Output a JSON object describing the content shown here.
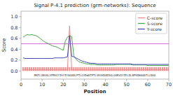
{
  "chart_data": {
    "type": "line",
    "title": "Signal P-4.1 prediction (grm-networks): Sequence",
    "x_label": "Position",
    "y_label": "Score",
    "x": [
      1,
      2,
      3,
      4,
      5,
      6,
      7,
      8,
      9,
      10,
      11,
      12,
      13,
      14,
      15,
      16,
      17,
      18,
      19,
      20,
      21,
      22,
      23,
      24,
      25,
      26,
      27,
      28,
      29,
      30,
      31,
      32,
      33,
      34,
      35,
      36,
      37,
      38,
      39,
      40,
      41,
      42,
      43,
      44,
      45,
      46,
      47,
      48,
      49,
      50,
      51,
      52,
      53,
      54,
      55,
      56,
      57,
      58,
      59,
      60,
      61,
      62,
      63,
      64,
      65,
      66,
      67,
      68,
      69,
      70
    ],
    "series": [
      {
        "name": "C-score",
        "color": "#f08888",
        "values": [
          0.02,
          0.02,
          0.02,
          0.02,
          0.02,
          0.02,
          0.02,
          0.02,
          0.02,
          0.02,
          0.02,
          0.02,
          0.02,
          0.02,
          0.02,
          0.02,
          0.02,
          0.02,
          0.02,
          0.02,
          0.02,
          0.02,
          0.83,
          0.02,
          0.02,
          0.02,
          0.02,
          0.02,
          0.02,
          0.02,
          0.02,
          0.02,
          0.02,
          0.02,
          0.02,
          0.02,
          0.02,
          0.02,
          0.02,
          0.02,
          0.02,
          0.02,
          0.02,
          0.02,
          0.02,
          0.02,
          0.02,
          0.02,
          0.02,
          0.02,
          0.02,
          0.02,
          0.02,
          0.02,
          0.02,
          0.02,
          0.02,
          0.02,
          0.02,
          0.02,
          0.02,
          0.02,
          0.02,
          0.02,
          0.02,
          0.02,
          0.02,
          0.02,
          0.02,
          0.02
        ]
      },
      {
        "name": "S-score",
        "color": "#44aa44",
        "values": [
          0.62,
          0.65,
          0.67,
          0.66,
          0.67,
          0.66,
          0.65,
          0.63,
          0.6,
          0.57,
          0.54,
          0.52,
          0.5,
          0.48,
          0.46,
          0.45,
          0.44,
          0.42,
          0.4,
          0.38,
          0.55,
          0.62,
          0.65,
          0.63,
          0.28,
          0.22,
          0.18,
          0.16,
          0.15,
          0.14,
          0.13,
          0.13,
          0.12,
          0.12,
          0.12,
          0.11,
          0.11,
          0.11,
          0.11,
          0.11,
          0.11,
          0.11,
          0.11,
          0.11,
          0.12,
          0.12,
          0.12,
          0.12,
          0.12,
          0.12,
          0.12,
          0.12,
          0.11,
          0.11,
          0.11,
          0.11,
          0.11,
          0.11,
          0.11,
          0.1,
          0.1,
          0.1,
          0.1,
          0.1,
          0.1,
          0.1,
          0.1,
          0.1,
          0.1,
          0.1
        ]
      },
      {
        "name": "Y-score",
        "color": "#4444bb",
        "values": [
          0.24,
          0.23,
          0.23,
          0.23,
          0.23,
          0.23,
          0.23,
          0.23,
          0.23,
          0.23,
          0.23,
          0.23,
          0.23,
          0.23,
          0.23,
          0.24,
          0.24,
          0.24,
          0.24,
          0.24,
          0.25,
          0.26,
          0.65,
          0.27,
          0.26,
          0.24,
          0.22,
          0.2,
          0.18,
          0.17,
          0.16,
          0.15,
          0.14,
          0.14,
          0.14,
          0.13,
          0.13,
          0.13,
          0.13,
          0.13,
          0.13,
          0.13,
          0.13,
          0.13,
          0.13,
          0.13,
          0.13,
          0.13,
          0.13,
          0.13,
          0.13,
          0.13,
          0.12,
          0.12,
          0.12,
          0.12,
          0.12,
          0.12,
          0.12,
          0.12,
          0.12,
          0.12,
          0.12,
          0.12,
          0.12,
          0.12,
          0.12,
          0.12,
          0.12,
          0.12
        ]
      },
      {
        "type": "bar",
        "color": "#f08080",
        "values": [
          0.07,
          0.07,
          0.07,
          0.07,
          0.07,
          0.07,
          0.07,
          0.07,
          0.07,
          0.07,
          0.07,
          0.07,
          0.07,
          0.07,
          0.07,
          0.07,
          0.07,
          0.07,
          0.07,
          0.07,
          0.07,
          0.07,
          0.07,
          0.07,
          0.07,
          0.07,
          0.07,
          0.07,
          0.07,
          0.07,
          0.07,
          0.07,
          0.07,
          0.07,
          0.07,
          0.07,
          0.07,
          0.07,
          0.07,
          0.07,
          0.07,
          0.07,
          0.07,
          0.07,
          0.07,
          0.07,
          0.07,
          0.07,
          0.07,
          0.07,
          0.07,
          0.07,
          0.07,
          0.07,
          0.07,
          0.07,
          0.07,
          0.07,
          0.07,
          0.07,
          0.07,
          0.07,
          0.07,
          0.07,
          0.07,
          0.07,
          0.07,
          0.07,
          0.07,
          0.07
        ]
      }
    ],
    "hlines": [
      {
        "value": 0.5,
        "color": "#cc44cc"
      }
    ],
    "annotations": [
      {
        "text": "MKFLVNVALVFMVVYISYIYAQADLPTLGYDWATPTLVKVKDAEDQLGARVGYIELDLNPSDNAAATLLDAA"
      }
    ],
    "xlim": [
      0,
      70
    ],
    "ylim": [
      -0.15,
      1.1
    ],
    "xticks": [
      0,
      10,
      20,
      30,
      40,
      50,
      60,
      70
    ],
    "yticks": [
      {
        "value": 0.0,
        "label": "0.0"
      },
      0.2,
      0.4,
      0.6,
      0.8,
      {
        "value": 1.0,
        "label": "1.0"
      }
    ],
    "grid": false,
    "legend": "upper right"
  }
}
